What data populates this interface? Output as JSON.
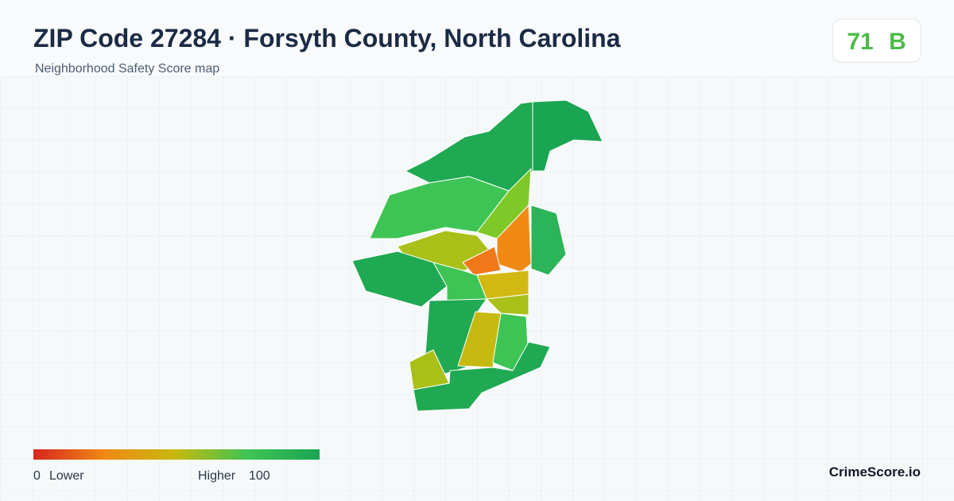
{
  "header": {
    "title": "ZIP Code 27284 · Forsyth County, North Carolina",
    "subtitle": "Neighborhood Safety Score map"
  },
  "score": {
    "value": 71,
    "grade": "B"
  },
  "legend": {
    "min": 0,
    "min_label": "Lower",
    "max_label": "Higher",
    "max": 100
  },
  "brand": "CrimeScore.io"
}
